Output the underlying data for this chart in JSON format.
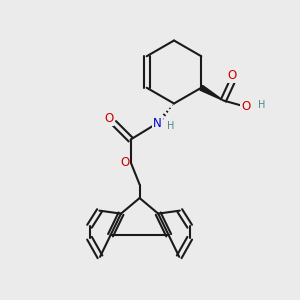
{
  "bg_color": "#ebebeb",
  "line_color": "#1a1a1a",
  "bond_width": 1.5,
  "atom_colors": {
    "O": "#cc0000",
    "N": "#0000cc",
    "C": "#1a1a1a",
    "H": "#4a8a8a"
  },
  "font_size_atoms": 8.5,
  "font_size_small": 7.0
}
